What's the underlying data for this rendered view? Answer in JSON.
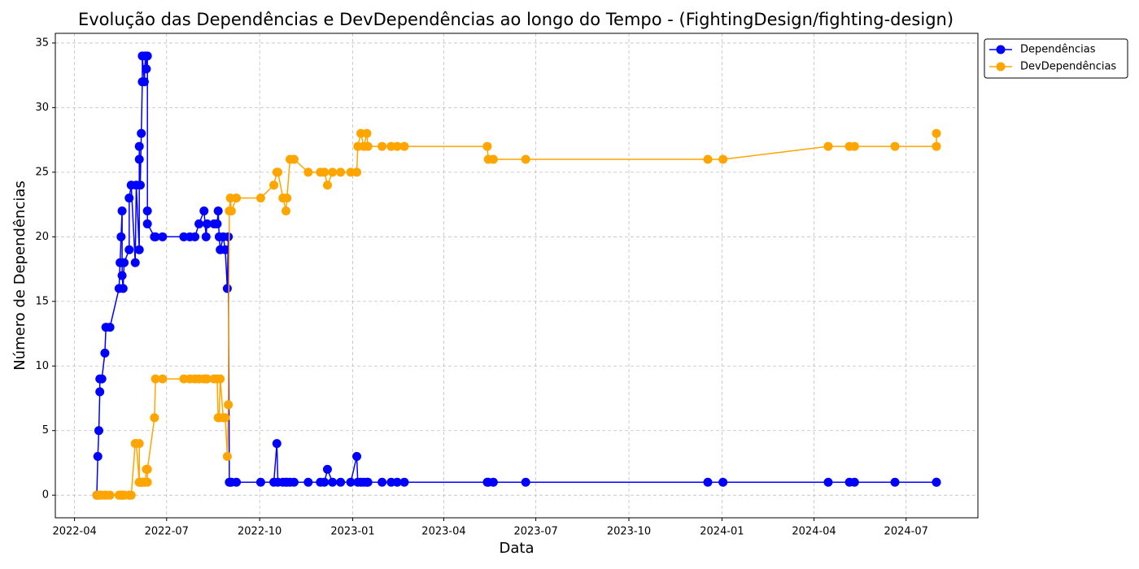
{
  "chart_data": {
    "type": "line",
    "title": "Evolução das Dependências e DevDependências ao longo do Tempo - (FightingDesign/fighting-design)",
    "xlabel": "Data",
    "ylabel": "Número de Dependências",
    "x": [
      "2022-04-23",
      "2022-04-24",
      "2022-04-25",
      "2022-04-26",
      "2022-04-26",
      "2022-04-28",
      "2022-05-01",
      "2022-05-02",
      "2022-05-06",
      "2022-05-15",
      "2022-05-16",
      "2022-05-17",
      "2022-05-18",
      "2022-05-18",
      "2022-05-19",
      "2022-05-20",
      "2022-05-25",
      "2022-05-25",
      "2022-05-27",
      "2022-05-31",
      "2022-06-01",
      "2022-06-04",
      "2022-06-04",
      "2022-06-04",
      "2022-06-05",
      "2022-06-06",
      "2022-06-07",
      "2022-06-07",
      "2022-06-09",
      "2022-06-10",
      "2022-06-11",
      "2022-06-12",
      "2022-06-12",
      "2022-06-12",
      "2022-06-19",
      "2022-06-20",
      "2022-06-27",
      "2022-07-18",
      "2022-07-24",
      "2022-07-29",
      "2022-08-02",
      "2022-08-07",
      "2022-08-09",
      "2022-08-10",
      "2022-08-17",
      "2022-08-20",
      "2022-08-21",
      "2022-08-22",
      "2022-08-23",
      "2022-08-26",
      "2022-08-28",
      "2022-08-30",
      "2022-08-31",
      "2022-09-01",
      "2022-09-02",
      "2022-09-03",
      "2022-09-08",
      "2022-10-02",
      "2022-10-15",
      "2022-10-18",
      "2022-10-19",
      "2022-10-24",
      "2022-10-27",
      "2022-10-28",
      "2022-10-31",
      "2022-11-04",
      "2022-11-18",
      "2022-11-30",
      "2022-12-04",
      "2022-12-07",
      "2022-12-12",
      "2022-12-20",
      "2022-12-30",
      "2023-01-05",
      "2023-01-06",
      "2023-01-09",
      "2023-01-12",
      "2023-01-15",
      "2023-01-16",
      "2023-01-30",
      "2023-02-08",
      "2023-02-14",
      "2023-02-21",
      "2023-05-14",
      "2023-05-15",
      "2023-05-20",
      "2023-06-21",
      "2023-12-18",
      "2024-01-02",
      "2024-04-15",
      "2024-05-06",
      "2024-05-11",
      "2024-06-20",
      "2024-07-31",
      "2024-07-31"
    ],
    "series": [
      {
        "name": "Dependências",
        "color": "#0000ff",
        "values": [
          0,
          3,
          5,
          8,
          9,
          9,
          11,
          13,
          13,
          16,
          18,
          20,
          22,
          17,
          16,
          18,
          19,
          23,
          24,
          18,
          24,
          19,
          26,
          27,
          24,
          28,
          32,
          34,
          32,
          34,
          33,
          34,
          22,
          21,
          20,
          20,
          20,
          20,
          20,
          20,
          21,
          22,
          20,
          21,
          21,
          21,
          22,
          20,
          19,
          20,
          19,
          16,
          20,
          1,
          1,
          1,
          1,
          1,
          1,
          4,
          1,
          1,
          1,
          1,
          1,
          1,
          1,
          1,
          1,
          2,
          1,
          1,
          1,
          3,
          1,
          1,
          1,
          1,
          1,
          1,
          1,
          1,
          1,
          1,
          1,
          1,
          1,
          1,
          1,
          1,
          1,
          1,
          1,
          1,
          1
        ]
      },
      {
        "name": "DevDependências",
        "color": "#ffa500",
        "values": [
          0,
          0,
          0,
          0,
          0,
          0,
          0,
          0,
          0,
          0,
          0,
          0,
          0,
          0,
          0,
          0,
          0,
          0,
          0,
          4,
          4,
          1,
          4,
          1,
          1,
          1,
          1,
          1,
          1,
          1,
          2,
          2,
          1,
          2,
          6,
          9,
          9,
          9,
          9,
          9,
          9,
          9,
          9,
          9,
          9,
          9,
          6,
          6,
          9,
          6,
          6,
          3,
          7,
          22,
          23,
          22,
          23,
          23,
          24,
          25,
          25,
          23,
          22,
          23,
          26,
          26,
          25,
          25,
          25,
          24,
          25,
          25,
          25,
          25,
          27,
          28,
          27,
          28,
          27,
          27,
          27,
          27,
          27,
          27,
          26,
          26,
          26,
          26,
          26,
          27,
          27,
          27,
          27,
          27,
          28
        ]
      }
    ],
    "xlim": [
      "2022-03-13",
      "2024-09-10"
    ],
    "xticks": [
      {
        "value": "2022-04-01",
        "label": "2022-04"
      },
      {
        "value": "2022-07-01",
        "label": "2022-07"
      },
      {
        "value": "2022-10-01",
        "label": "2022-10"
      },
      {
        "value": "2023-01-01",
        "label": "2023-01"
      },
      {
        "value": "2023-04-01",
        "label": "2023-04"
      },
      {
        "value": "2023-07-01",
        "label": "2023-07"
      },
      {
        "value": "2023-10-01",
        "label": "2023-10"
      },
      {
        "value": "2024-01-01",
        "label": "2024-01"
      },
      {
        "value": "2024-04-01",
        "label": "2024-04"
      },
      {
        "value": "2024-07-01",
        "label": "2024-07"
      }
    ],
    "ylim": [
      -1.75,
      35.75
    ],
    "yticks": [
      0,
      5,
      10,
      15,
      20,
      25,
      30,
      35
    ],
    "grid": true,
    "legend": "upper right"
  }
}
